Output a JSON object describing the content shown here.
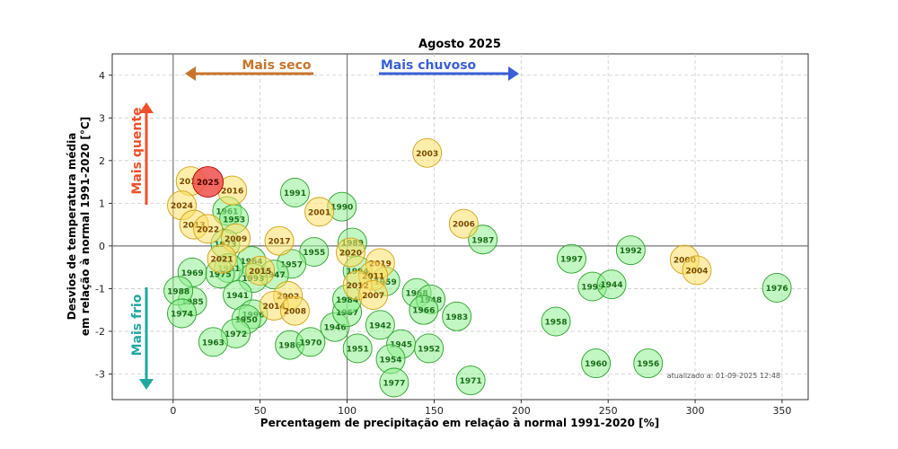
{
  "chart_data": {
    "type": "scatter",
    "title": "Agosto 2025",
    "xlabel": "Percentagem de precipitação em relação à normal 1991-2020 [%]",
    "ylabel_line1": "Desvios de temperatura média",
    "ylabel_line2": "em relação à normal 1991-2020 [°C]",
    "xlim": [
      -35,
      365
    ],
    "ylim": [
      -3.6,
      4.5
    ],
    "xticks": [
      0,
      50,
      100,
      150,
      200,
      250,
      300,
      350
    ],
    "yticks": [
      -3,
      -2,
      -1,
      0,
      1,
      2,
      3,
      4
    ],
    "grid": true,
    "reference_lines": {
      "x": [
        0,
        100
      ],
      "y": [
        0
      ]
    },
    "annotations": {
      "dry": "Mais seco",
      "wet": "Mais chuvoso",
      "hot": "Mais quente",
      "cold": "Mais frio"
    },
    "updated_note": "atualizado a: 01-09-2025 12:48",
    "colors": {
      "green_fill": "#90ee90",
      "green_edge": "#2ca02c",
      "green_text": "#1a6e1a",
      "yellow_fill": "#ffe066",
      "yellow_edge": "#d4a017",
      "yellow_text": "#7a4a00",
      "red_fill": "#f0504a",
      "red_edge": "#b00000",
      "red_text": "#4a0000",
      "dry_color": "#c8742a",
      "wet_color": "#3a5fd6",
      "hot_color": "#f0502a",
      "cold_color": "#20a8a0"
    },
    "series": [
      {
        "group": "green",
        "points": [
          {
            "label": "1991",
            "x": 70,
            "y": 1.25
          },
          {
            "label": "1990",
            "x": 97,
            "y": 0.92
          },
          {
            "label": "1961",
            "x": 31,
            "y": 0.82
          },
          {
            "label": "1953",
            "x": 35,
            "y": 0.63
          },
          {
            "label": "1955",
            "x": 81,
            "y": -0.14
          },
          {
            "label": "1957",
            "x": 68,
            "y": -0.42
          },
          {
            "label": "1964",
            "x": 45,
            "y": -0.35
          },
          {
            "label": "1947",
            "x": 58,
            "y": -0.67
          },
          {
            "label": "1993",
            "x": 46,
            "y": -0.75
          },
          {
            "label": "1973",
            "x": 30,
            "y": 0.05
          },
          {
            "label": "1981",
            "x": 32,
            "y": -0.52
          },
          {
            "label": "1969",
            "x": 11,
            "y": -0.62
          },
          {
            "label": "1975",
            "x": 27,
            "y": -0.65
          },
          {
            "label": "1941",
            "x": 37,
            "y": -1.15
          },
          {
            "label": "1996",
            "x": 46,
            "y": -1.6
          },
          {
            "label": "1950",
            "x": 42,
            "y": -1.72
          },
          {
            "label": "1972",
            "x": 36,
            "y": -2.05
          },
          {
            "label": "1963",
            "x": 23,
            "y": -2.25
          },
          {
            "label": "1985",
            "x": 11,
            "y": -1.3
          },
          {
            "label": "1988",
            "x": 3,
            "y": -1.05
          },
          {
            "label": "1974",
            "x": 5,
            "y": -1.58
          },
          {
            "label": "1986",
            "x": 67,
            "y": -2.32
          },
          {
            "label": "1970",
            "x": 79,
            "y": -2.25
          },
          {
            "label": "1946",
            "x": 93,
            "y": -1.9
          },
          {
            "label": "1967",
            "x": 100,
            "y": -1.55
          },
          {
            "label": "1984",
            "x": 100,
            "y": -1.25
          },
          {
            "label": "1994",
            "x": 106,
            "y": -0.58
          },
          {
            "label": "1989",
            "x": 103,
            "y": 0.08
          },
          {
            "label": "1959",
            "x": 122,
            "y": -0.83
          },
          {
            "label": "1942",
            "x": 119,
            "y": -1.85
          },
          {
            "label": "1951",
            "x": 106,
            "y": -2.4
          },
          {
            "label": "1945",
            "x": 131,
            "y": -2.3
          },
          {
            "label": "1954",
            "x": 125,
            "y": -2.65
          },
          {
            "label": "1977",
            "x": 127,
            "y": -3.2
          },
          {
            "label": "1968",
            "x": 140,
            "y": -1.1
          },
          {
            "label": "1948",
            "x": 148,
            "y": -1.25
          },
          {
            "label": "1966",
            "x": 144,
            "y": -1.5
          },
          {
            "label": "1952",
            "x": 147,
            "y": -2.4
          },
          {
            "label": "1983",
            "x": 163,
            "y": -1.65
          },
          {
            "label": "1971",
            "x": 171,
            "y": -3.15
          },
          {
            "label": "1987",
            "x": 178,
            "y": 0.15
          },
          {
            "label": "1958",
            "x": 220,
            "y": -1.77
          },
          {
            "label": "1997",
            "x": 229,
            "y": -0.3
          },
          {
            "label": "1999",
            "x": 241,
            "y": -0.95
          },
          {
            "label": "1944",
            "x": 252,
            "y": -0.9
          },
          {
            "label": "1992",
            "x": 263,
            "y": -0.1
          },
          {
            "label": "1960",
            "x": 243,
            "y": -2.75
          },
          {
            "label": "1956",
            "x": 273,
            "y": -2.75
          },
          {
            "label": "1976",
            "x": 347,
            "y": -0.98
          }
        ]
      },
      {
        "group": "yellow",
        "points": [
          {
            "label": "2003",
            "x": 146,
            "y": 2.18
          },
          {
            "label": "2006",
            "x": 167,
            "y": 0.52
          },
          {
            "label": "2001",
            "x": 84,
            "y": 0.8
          },
          {
            "label": "2017",
            "x": 61,
            "y": 0.12
          },
          {
            "label": "2016",
            "x": 34,
            "y": 1.3
          },
          {
            "label": "2018",
            "x": 10,
            "y": 1.52
          },
          {
            "label": "2024",
            "x": 5,
            "y": 0.95
          },
          {
            "label": "2013",
            "x": 12,
            "y": 0.5
          },
          {
            "label": "2022",
            "x": 20,
            "y": 0.4
          },
          {
            "label": "2009",
            "x": 36,
            "y": 0.18
          },
          {
            "label": "2021",
            "x": 28,
            "y": -0.3
          },
          {
            "label": "2015",
            "x": 50,
            "y": -0.58
          },
          {
            "label": "2002",
            "x": 66,
            "y": -1.17
          },
          {
            "label": "2014",
            "x": 58,
            "y": -1.4
          },
          {
            "label": "2008",
            "x": 70,
            "y": -1.52
          },
          {
            "label": "2020",
            "x": 102,
            "y": -0.15
          },
          {
            "label": "2019",
            "x": 119,
            "y": -0.4
          },
          {
            "label": "2011",
            "x": 115,
            "y": -0.7
          },
          {
            "label": "2012",
            "x": 106,
            "y": -0.92
          },
          {
            "label": "2007",
            "x": 115,
            "y": -1.15
          },
          {
            "label": "2000",
            "x": 294,
            "y": -0.32
          },
          {
            "label": "2004",
            "x": 301,
            "y": -0.57
          }
        ]
      },
      {
        "group": "red",
        "points": [
          {
            "label": "2025",
            "x": 20,
            "y": 1.5
          }
        ]
      }
    ]
  }
}
